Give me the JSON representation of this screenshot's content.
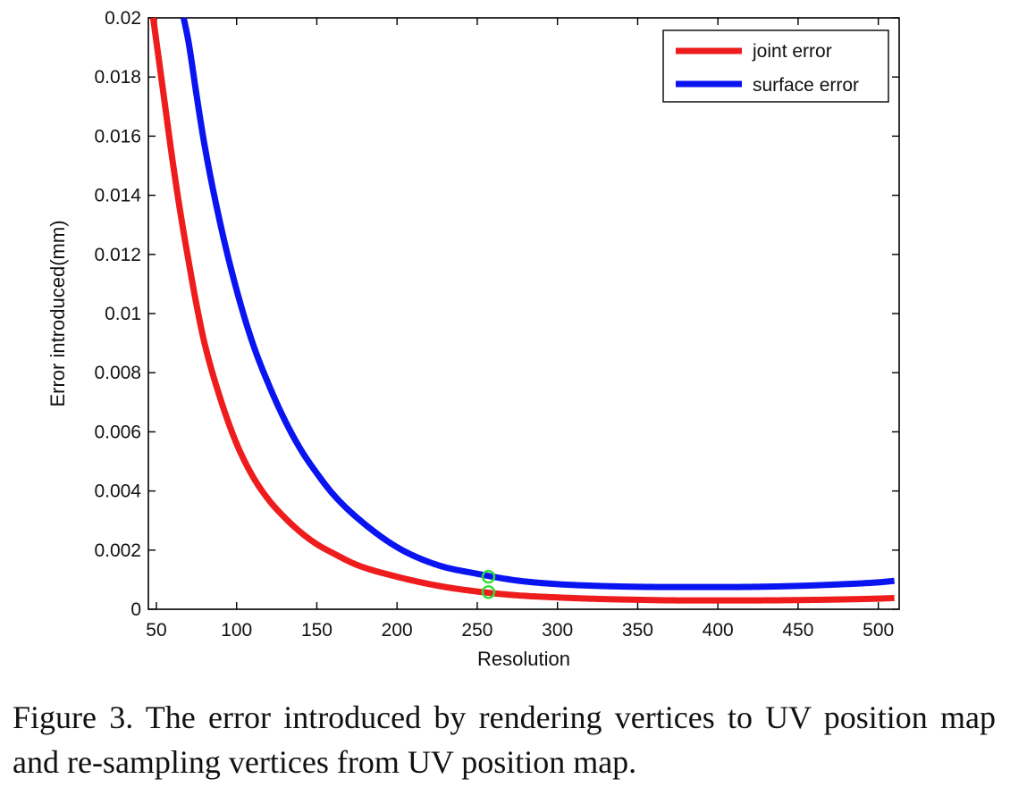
{
  "caption": "Figure 3. The error introduced by rendering vertices to UV position map and re-sampling vertices from UV position map.",
  "chart_data": {
    "type": "line",
    "title": "",
    "xlabel": "Resolution",
    "ylabel": "Error introduced(mm)",
    "xlim": [
      45,
      513
    ],
    "ylim": [
      0,
      0.02
    ],
    "xticks": [
      50,
      100,
      150,
      200,
      250,
      300,
      350,
      400,
      450,
      500
    ],
    "yticks": [
      0,
      0.002,
      0.004,
      0.006,
      0.008,
      0.01,
      0.012,
      0.014,
      0.016,
      0.018,
      0.02
    ],
    "ytick_labels": [
      "0",
      "0.002",
      "0.004",
      "0.006",
      "0.008",
      "0.01",
      "0.012",
      "0.014",
      "0.016",
      "0.018",
      "0.02"
    ],
    "grid": false,
    "legend_position": "top-right",
    "series": [
      {
        "name": "joint error",
        "color": "#ee1c1c",
        "x": [
          48,
          50,
          55,
          60,
          65,
          70,
          75,
          80,
          90,
          100,
          110,
          120,
          130,
          140,
          150,
          160,
          175,
          200,
          225,
          250,
          275,
          300,
          325,
          350,
          375,
          400,
          425,
          450,
          475,
          500,
          510
        ],
        "y": [
          0.02,
          0.0192,
          0.0172,
          0.0152,
          0.0134,
          0.0118,
          0.0103,
          0.009,
          0.0071,
          0.0056,
          0.0045,
          0.0037,
          0.0031,
          0.0026,
          0.0022,
          0.0019,
          0.0015,
          0.0011,
          0.0008,
          0.0006,
          0.00047,
          0.0004,
          0.00035,
          0.00032,
          0.0003,
          0.0003,
          0.0003,
          0.00031,
          0.00033,
          0.00036,
          0.00038
        ]
      },
      {
        "name": "surface error",
        "color": "#0a14f0",
        "x": [
          67,
          70,
          75,
          80,
          90,
          100,
          110,
          120,
          130,
          140,
          150,
          160,
          175,
          200,
          225,
          250,
          275,
          300,
          325,
          350,
          375,
          400,
          425,
          450,
          475,
          500,
          510
        ],
        "y": [
          0.02,
          0.0192,
          0.0174,
          0.0157,
          0.013,
          0.0108,
          0.009,
          0.0076,
          0.0064,
          0.0054,
          0.0046,
          0.0039,
          0.0031,
          0.0021,
          0.0015,
          0.0012,
          0.00097,
          0.00085,
          0.00079,
          0.00076,
          0.00075,
          0.00075,
          0.00076,
          0.00079,
          0.00084,
          0.00091,
          0.00096
        ]
      }
    ],
    "markers": [
      {
        "x": 257,
        "y": 0.00058,
        "color": "#33dd33"
      },
      {
        "x": 257,
        "y": 0.0011,
        "color": "#33dd33"
      }
    ]
  }
}
